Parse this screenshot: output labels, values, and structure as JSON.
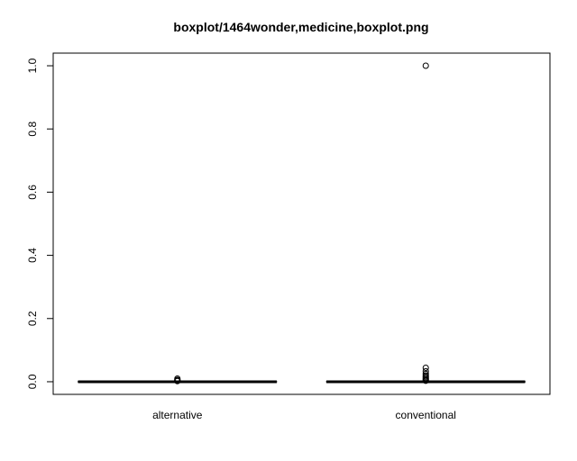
{
  "chart_data": {
    "type": "boxplot",
    "title": "boxplot/1464wonder,medicine,boxplot.png",
    "xlabel": "",
    "ylabel": "",
    "categories": [
      "alternative",
      "conventional"
    ],
    "ylim": [
      -0.04,
      1.04
    ],
    "yticks": [
      "0.0",
      "0.2",
      "0.4",
      "0.6",
      "0.8",
      "1.0"
    ],
    "boxes": [
      {
        "category": "alternative",
        "min": 0,
        "q1": 0,
        "median": 0,
        "q3": 0,
        "max": 0,
        "outliers": [
          0.01,
          0.006,
          0.004,
          0.002
        ]
      },
      {
        "category": "conventional",
        "min": 0,
        "q1": 0,
        "median": 0,
        "q3": 0,
        "max": 0,
        "outliers": [
          1.0,
          0.044,
          0.033,
          0.025,
          0.02,
          0.016,
          0.012,
          0.008,
          0.005,
          0.003
        ]
      }
    ],
    "grid": false,
    "legend": "none"
  }
}
